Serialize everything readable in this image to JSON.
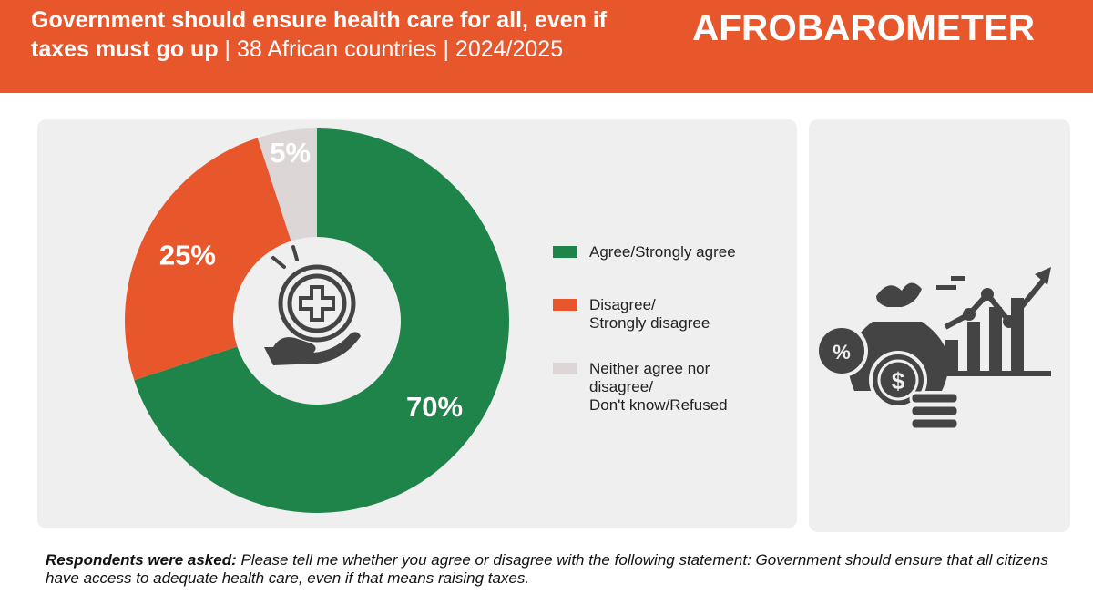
{
  "header": {
    "title_bold": "Government should ensure health care for all, even if taxes must go up",
    "title_rest": " | 38 African countries | 2024/2025",
    "logo_text": "AFROBAROMETER",
    "background_color": "#e8572c"
  },
  "chart_data": {
    "type": "pie",
    "donut": true,
    "slices": [
      {
        "label": "Agree/Strongly agree",
        "value": 70,
        "display": "70%",
        "color": "#1e844a"
      },
      {
        "label": "Disagree/\nStrongly disagree",
        "value": 25,
        "display": "25%",
        "color": "#e8572c"
      },
      {
        "label": "Neither agree nor\ndisagree/\nDon't know/Refused",
        "value": 5,
        "display": "5%",
        "color": "#dcd6d6"
      }
    ],
    "legend_position": "right",
    "center_icon": "hand-holding-medical-cross-icon"
  },
  "side_panel": {
    "icon": "money-bag-growth-chart-icon"
  },
  "footnote": {
    "label": "Respondents were asked:",
    "text": " Please tell me whether you agree or disagree with the following statement: Government should ensure that all citizens have access to adequate health care, even if that means raising taxes."
  }
}
